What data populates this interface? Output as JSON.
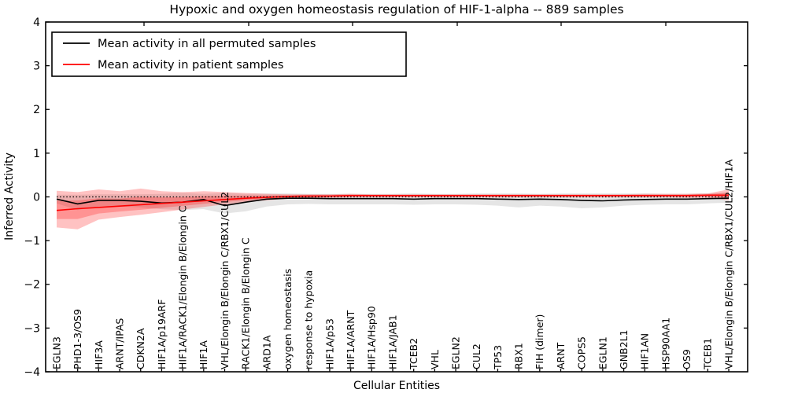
{
  "figure": {
    "title": "Hypoxic and oxygen homeostasis regulation of HIF-1-alpha -- 889 samples",
    "xlabel": "Cellular Entities",
    "ylabel": "Inferred Activity"
  },
  "legend": {
    "entries": [
      {
        "label": "Mean activity in all permuted samples",
        "color": "#000000"
      },
      {
        "label": "Mean activity in patient samples",
        "color": "#ff0000"
      }
    ]
  },
  "chart_data": {
    "type": "line",
    "title": "Hypoxic and oxygen homeostasis regulation of HIF-1-alpha -- 889 samples",
    "xlabel": "Cellular Entities",
    "ylabel": "Inferred Activity",
    "ylim": [
      -4,
      4
    ],
    "yticks": [
      -4,
      -3,
      -2,
      -1,
      0,
      1,
      2,
      3,
      4
    ],
    "grid": false,
    "legend_position": "upper left",
    "categories": [
      "EGLN3",
      "PHD1-3/OS9",
      "HIF3A",
      "ARNT/IPAS",
      "CDKN2A",
      "HIF1A/p19ARF",
      "HIF1A/RACK1/Elongin B/Elongin C",
      "HIF1A",
      "VHL/Elongin B/Elongin C/RBX1/CUL2",
      "RACK1/Elongin B/Elongin C",
      "ARD1A",
      "oxygen homeostasis",
      "response to hypoxia",
      "HIF1A/p53",
      "HIF1A/ARNT",
      "HIF1A/Hsp90",
      "HIF1A/JAB1",
      "TCEB2",
      "VHL",
      "EGLN2",
      "CUL2",
      "TP53",
      "RBX1",
      "FIH (dimer)",
      "ARNT",
      "COPS5",
      "EGLN1",
      "GNB2L1",
      "HIF1AN",
      "HSP90AA1",
      "OS9",
      "TCEB1",
      "VHL/Elongin B/Elongin C/RBX1/CUL2/HIF1A"
    ],
    "series": [
      {
        "name": "Mean activity in all permuted samples",
        "color": "#000000",
        "style": "solid",
        "values": [
          -0.05,
          -0.16,
          -0.08,
          -0.08,
          -0.1,
          -0.14,
          -0.12,
          -0.06,
          -0.2,
          -0.12,
          -0.05,
          -0.03,
          -0.03,
          -0.04,
          -0.04,
          -0.04,
          -0.04,
          -0.05,
          -0.04,
          -0.04,
          -0.04,
          -0.05,
          -0.06,
          -0.05,
          -0.06,
          -0.08,
          -0.09,
          -0.07,
          -0.06,
          -0.05,
          -0.05,
          -0.04,
          -0.03
        ]
      },
      {
        "name": "Mean activity in patient samples",
        "color": "#ff0000",
        "style": "solid",
        "values": [
          -0.31,
          -0.27,
          -0.24,
          -0.21,
          -0.18,
          -0.15,
          -0.12,
          -0.09,
          -0.06,
          -0.03,
          -0.01,
          0.01,
          0.02,
          0.02,
          0.03,
          0.03,
          0.03,
          0.03,
          0.03,
          0.03,
          0.03,
          0.03,
          0.03,
          0.03,
          0.03,
          0.03,
          0.03,
          0.03,
          0.03,
          0.03,
          0.03,
          0.04,
          0.04
        ]
      }
    ],
    "bands": [
      {
        "name": "permuted samples spread",
        "color": "#bfbfbf",
        "opacity": 0.4,
        "upper": [
          0.05,
          0.05,
          0.06,
          0.06,
          0.06,
          0.07,
          0.09,
          0.07,
          0.09,
          0.07,
          0.08,
          0.08,
          0.07,
          0.07,
          0.07,
          0.07,
          0.07,
          0.08,
          0.07,
          0.07,
          0.08,
          0.08,
          0.08,
          0.07,
          0.08,
          0.08,
          0.08,
          0.08,
          0.08,
          0.07,
          0.07,
          0.08,
          0.1
        ],
        "lower": [
          -0.15,
          -0.3,
          -0.22,
          -0.22,
          -0.24,
          -0.28,
          -0.3,
          -0.28,
          -0.38,
          -0.33,
          -0.22,
          -0.17,
          -0.16,
          -0.17,
          -0.17,
          -0.17,
          -0.17,
          -0.18,
          -0.17,
          -0.17,
          -0.18,
          -0.2,
          -0.24,
          -0.2,
          -0.22,
          -0.26,
          -0.24,
          -0.2,
          -0.18,
          -0.17,
          -0.17,
          -0.15,
          -0.13
        ]
      },
      {
        "name": "patient samples spread",
        "color": "#ff0000",
        "opacity": 0.24,
        "upper": [
          0.14,
          0.11,
          0.17,
          0.13,
          0.19,
          0.13,
          0.11,
          0.13,
          0.11,
          0.09,
          0.07,
          0.06,
          0.06,
          0.06,
          0.07,
          0.06,
          0.06,
          0.06,
          0.06,
          0.06,
          0.06,
          0.06,
          0.06,
          0.06,
          0.06,
          0.06,
          0.06,
          0.06,
          0.07,
          0.07,
          0.07,
          0.08,
          0.17
        ],
        "lower": [
          -0.7,
          -0.74,
          -0.52,
          -0.46,
          -0.41,
          -0.35,
          -0.29,
          -0.23,
          -0.17,
          -0.12,
          -0.08,
          -0.04,
          -0.02,
          -0.02,
          -0.01,
          -0.01,
          -0.01,
          -0.01,
          -0.01,
          -0.01,
          -0.01,
          -0.01,
          -0.01,
          -0.01,
          -0.01,
          -0.01,
          -0.01,
          -0.01,
          -0.01,
          -0.01,
          -0.02,
          -0.02,
          -0.08
        ]
      }
    ],
    "reference_line": {
      "y": 0,
      "color": "#000000",
      "style": "dotted"
    }
  }
}
